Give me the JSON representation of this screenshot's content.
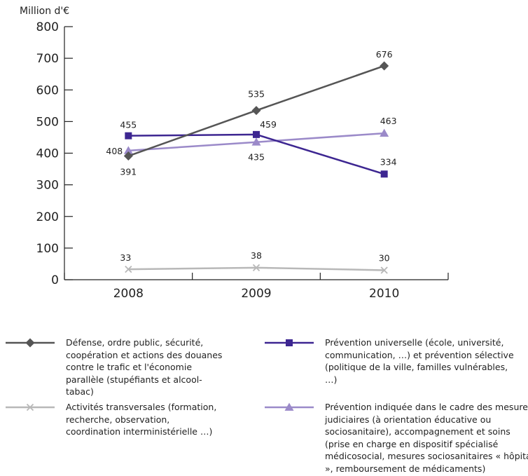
{
  "chart_data": {
    "type": "line",
    "ylabel": "Million d'€",
    "categories": [
      "2008",
      "2009",
      "2010"
    ],
    "ylim": [
      0,
      800
    ],
    "yticks": [
      0,
      100,
      200,
      300,
      400,
      500,
      600,
      700,
      800
    ],
    "grid": false,
    "legend_position": "bottom",
    "series": [
      {
        "name": "Défense, ordre public, sécurité, coopération et actions des douanes contre le trafic et l'économie parallèle (stupéfiants et alcool-tabac)",
        "values": [
          391,
          535,
          676
        ],
        "marker": "diamond",
        "color": "#555555"
      },
      {
        "name": "Prévention universelle (école, université, communication, …) et prévention sélective (politique de la ville, familles vulnérables, …)",
        "values": [
          455,
          459,
          334
        ],
        "marker": "square",
        "color": "#3d2691"
      },
      {
        "name": "Activités transversales (formation, recherche, observation, coordination interministérielle …)",
        "values": [
          33,
          38,
          30
        ],
        "marker": "x",
        "color": "#b8b8b8"
      },
      {
        "name": "Prévention indiquée dans le cadre des mesures judiciaires (à orientation éducative ou sociosanitaire), accompagnement et soins (prise en charge en dispositif spécialisé médicosocial, mesures sociosanitaires « hôpital », remboursement de médicaments)",
        "values": [
          408,
          435,
          463
        ],
        "marker": "triangle",
        "color": "#9b8ac9"
      }
    ]
  }
}
